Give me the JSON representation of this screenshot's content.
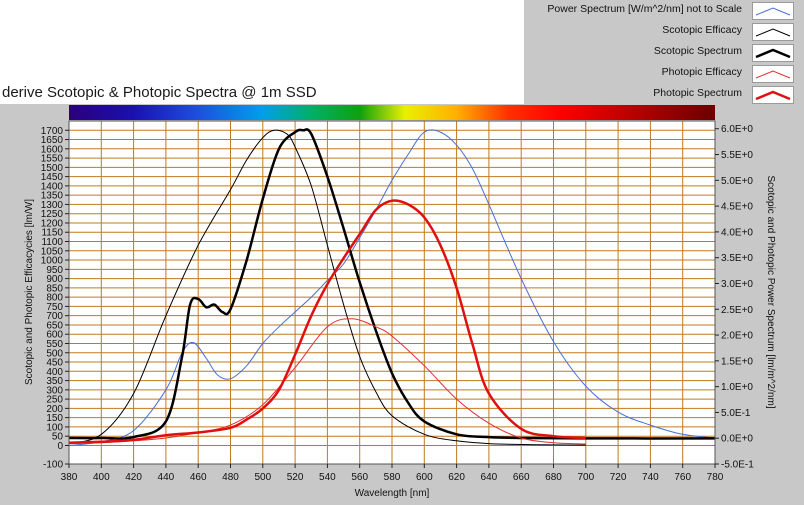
{
  "window": {
    "title": "derive Scotopic & Photopic Spectra @ 1m SSD"
  },
  "legend": {
    "items": [
      {
        "name": "Power Spectrum [W/m^2/nm] not to Scale",
        "color": "#4a6fd0",
        "width": 1
      },
      {
        "name": "Scotopic Efficacy",
        "color": "#000000",
        "width": 1
      },
      {
        "name": "Scotopic Spectrum",
        "color": "#000000",
        "width": 2.5
      },
      {
        "name": "Photopic Efficacy",
        "color": "#e03030",
        "width": 1
      },
      {
        "name": "Photopic Spectrum",
        "color": "#e01010",
        "width": 2.5
      }
    ]
  },
  "colors": {
    "grid": "#c07a1e",
    "plot_bg": "#ffffff",
    "panel_bg": "#c8c8c8"
  },
  "chart_data": {
    "type": "line",
    "title": "derive Scotopic & Photopic Spectra @ 1m SSD",
    "xlabel": "Wavelength [nm]",
    "ylabel_left": "Scotopic and Photopic Efficacycies [lm/W]",
    "ylabel_right": "Scotopic and Photopic Power Spectrum [lm/m^2/nm]",
    "xlim": [
      380,
      780
    ],
    "ylim_left": [
      -100,
      1750
    ],
    "ylim_right": [
      -0.5,
      6.15
    ],
    "grid": true,
    "legend_position": "top-right",
    "x_ticks": [
      380,
      400,
      420,
      440,
      460,
      480,
      500,
      520,
      540,
      560,
      580,
      600,
      620,
      640,
      660,
      680,
      700,
      720,
      740,
      760,
      780
    ],
    "x_tick_labels": [
      "380",
      "400",
      "420",
      "440",
      "460",
      "480",
      "500",
      "520",
      "540",
      "560",
      "580",
      "600",
      "620",
      "640",
      "660",
      "680",
      "700",
      "720",
      "740",
      "760",
      "780"
    ],
    "y_left_ticks": [
      -100,
      0,
      50,
      100,
      150,
      200,
      250,
      300,
      350,
      400,
      450,
      500,
      550,
      600,
      650,
      700,
      750,
      800,
      850,
      900,
      950,
      1000,
      1050,
      1100,
      1150,
      1200,
      1250,
      1300,
      1350,
      1400,
      1450,
      1500,
      1550,
      1600,
      1650,
      1700
    ],
    "y_left_tick_labels": [
      "-100",
      "0",
      "50",
      "100",
      "150",
      "200",
      "250",
      "300",
      "350",
      "400",
      "450",
      "500",
      "550",
      "600",
      "650",
      "700",
      "750",
      "800",
      "850",
      "900",
      "950",
      "1000",
      "1050",
      "1100",
      "1150",
      "1200",
      "1250",
      "1300",
      "1350",
      "1400",
      "1450",
      "1500",
      "1550",
      "1600",
      "1650",
      "1700"
    ],
    "y_right_ticks": [
      -0.5,
      0,
      0.5,
      1.0,
      1.5,
      2.0,
      2.5,
      3.0,
      3.5,
      4.0,
      4.5,
      5.0,
      5.5,
      6.0
    ],
    "y_right_tick_labels": [
      "-5.0E-1",
      "0.0E+0",
      "5.0E-1",
      "1.0E+0",
      "1.5E+0",
      "2.0E+0",
      "2.5E+0",
      "3.0E+0",
      "3.5E+0",
      "4.0E+0",
      "4.5E+0",
      "5.0E+0",
      "5.5E+0",
      "6.0E+0"
    ],
    "series": [
      {
        "name": "Power Spectrum [W/m^2/nm] not to Scale",
        "axis": "left",
        "x": [
          380,
          400,
          420,
          440,
          450,
          457,
          465,
          472,
          480,
          490,
          500,
          510,
          520,
          530,
          540,
          550,
          560,
          570,
          580,
          590,
          600,
          610,
          620,
          630,
          640,
          660,
          680,
          700,
          720,
          740,
          760,
          780
        ],
        "y": [
          0,
          20,
          80,
          300,
          500,
          555,
          470,
          380,
          360,
          430,
          550,
          640,
          720,
          800,
          890,
          980,
          1120,
          1270,
          1430,
          1570,
          1690,
          1690,
          1620,
          1490,
          1300,
          900,
          560,
          320,
          180,
          110,
          60,
          40
        ]
      },
      {
        "name": "Scotopic Efficacy",
        "axis": "left",
        "x": [
          380,
          400,
          420,
          440,
          460,
          480,
          490,
          500,
          507,
          515,
          520,
          530,
          540,
          550,
          560,
          570,
          580,
          600,
          620,
          640,
          660,
          680,
          700
        ],
        "y": [
          10,
          60,
          280,
          700,
          1080,
          1380,
          1540,
          1660,
          1700,
          1680,
          1610,
          1400,
          1080,
          760,
          480,
          290,
          160,
          60,
          25,
          10,
          5,
          3,
          2
        ]
      },
      {
        "name": "Scotopic Spectrum",
        "axis": "left",
        "x": [
          380,
          400,
          420,
          440,
          450,
          455,
          460,
          465,
          470,
          475,
          480,
          490,
          500,
          510,
          520,
          525,
          530,
          540,
          550,
          560,
          570,
          580,
          590,
          600,
          620,
          640,
          660,
          700,
          780
        ],
        "y": [
          40,
          40,
          45,
          130,
          480,
          760,
          790,
          745,
          760,
          720,
          735,
          1000,
          1330,
          1600,
          1690,
          1700,
          1680,
          1450,
          1170,
          880,
          620,
          390,
          230,
          130,
          60,
          45,
          40,
          38,
          38
        ]
      },
      {
        "name": "Photopic Efficacy",
        "axis": "left",
        "x": [
          380,
          400,
          420,
          440,
          460,
          480,
          500,
          520,
          540,
          555,
          570,
          580,
          600,
          620,
          640,
          660,
          680,
          700
        ],
        "y": [
          10,
          15,
          25,
          40,
          70,
          110,
          220,
          420,
          640,
          683,
          640,
          590,
          430,
          250,
          120,
          40,
          15,
          8
        ]
      },
      {
        "name": "Photopic Spectrum",
        "axis": "left",
        "x": [
          380,
          400,
          420,
          440,
          460,
          480,
          490,
          500,
          510,
          520,
          530,
          540,
          550,
          560,
          570,
          580,
          590,
          600,
          610,
          620,
          630,
          640,
          660,
          680,
          700
        ],
        "y": [
          15,
          20,
          30,
          55,
          70,
          95,
          140,
          200,
          300,
          490,
          700,
          870,
          1010,
          1140,
          1270,
          1320,
          1300,
          1230,
          1080,
          850,
          540,
          280,
          90,
          50,
          40
        ]
      }
    ]
  }
}
